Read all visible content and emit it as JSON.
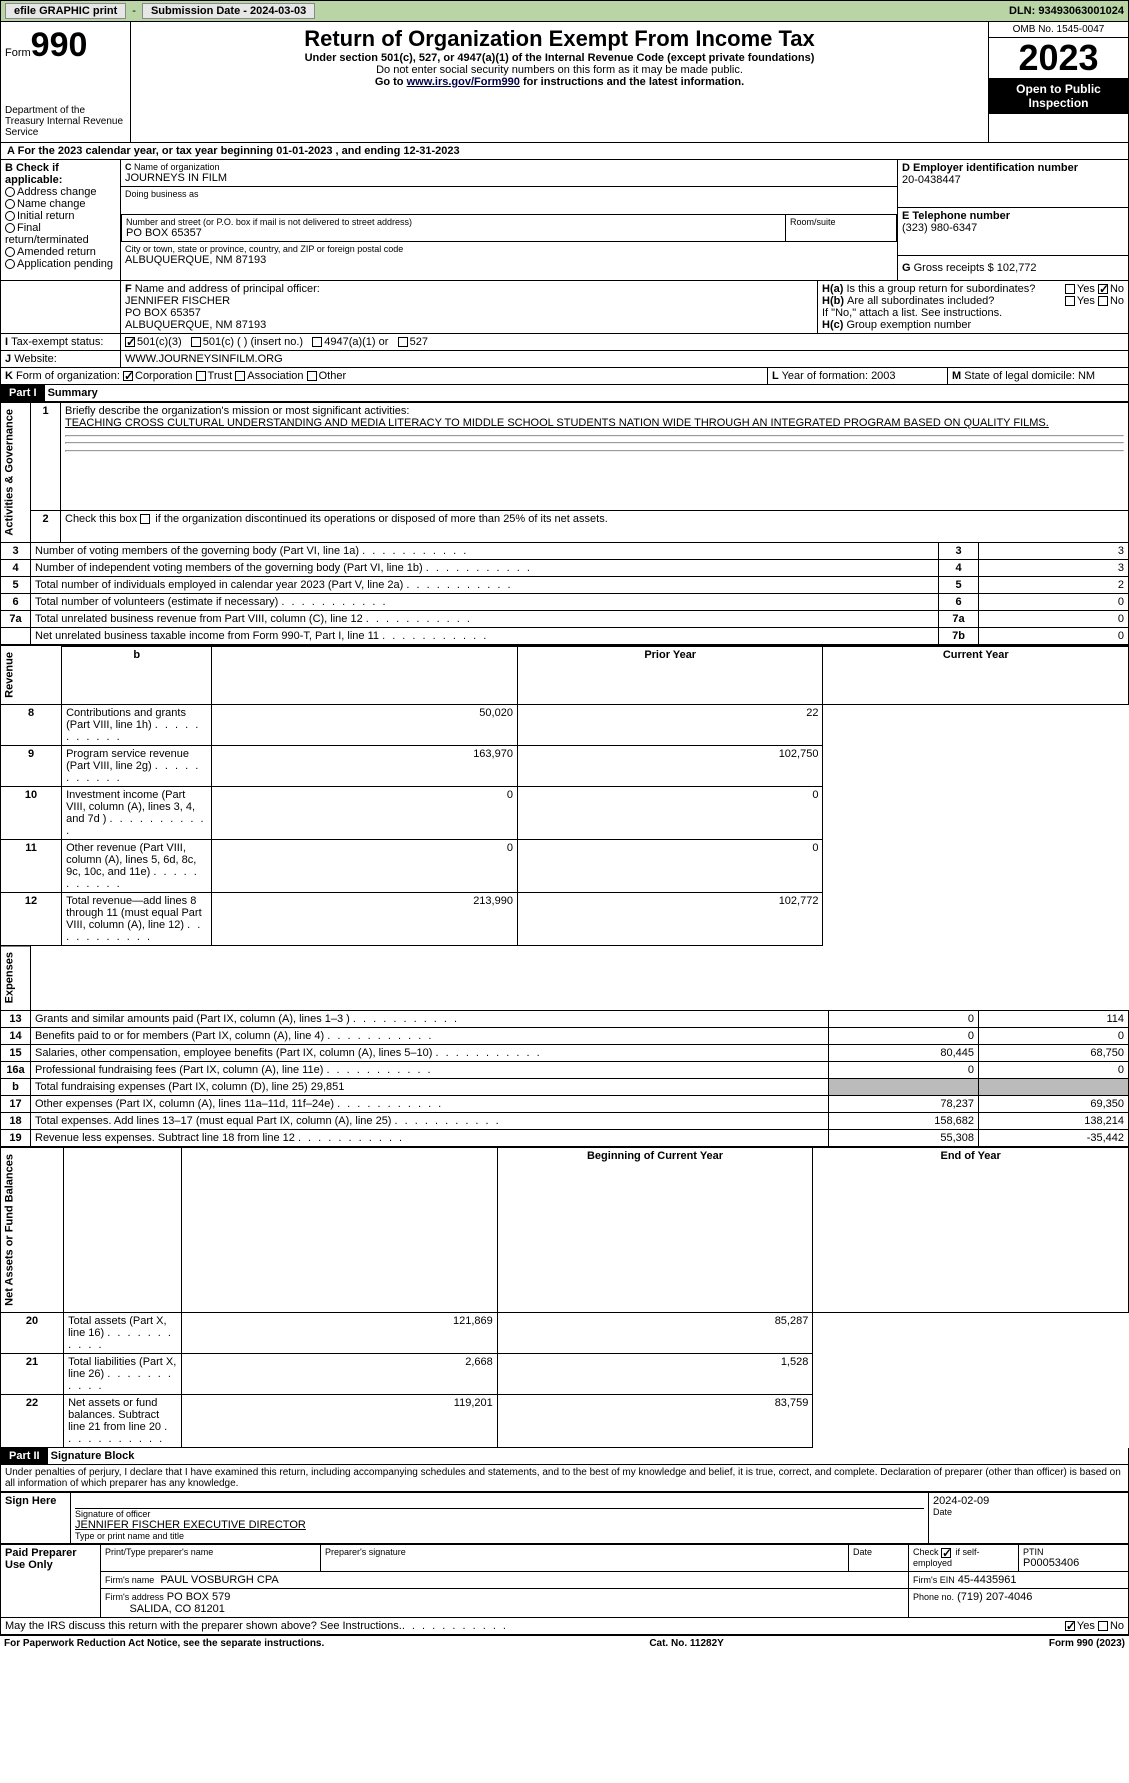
{
  "topbar": {
    "efile_label": "efile GRAPHIC print",
    "dash": "-",
    "sub_label": "Submission Date - 2024-03-03",
    "dln": "DLN: 93493063001024"
  },
  "header": {
    "form_word": "Form",
    "form_num": "990",
    "dept": "Department of the Treasury Internal Revenue Service",
    "title": "Return of Organization Exempt From Income Tax",
    "sub1": "Under section 501(c), 527, or 4947(a)(1) of the Internal Revenue Code (except private foundations)",
    "sub2": "Do not enter social security numbers on this form as it may be made public.",
    "goto_pre": "Go to ",
    "goto_link": "www.irs.gov/Form990",
    "goto_post": " for instructions and the latest information.",
    "omb": "OMB No. 1545-0047",
    "year": "2023",
    "open": "Open to Public Inspection"
  },
  "A": {
    "text": "For the 2023 calendar year, or tax year beginning 01-01-2023    , and ending 12-31-2023"
  },
  "B": {
    "title": "Check if applicable:",
    "items": [
      "Address change",
      "Name change",
      "Initial return",
      "Final return/terminated",
      "Amended return",
      "Application pending"
    ]
  },
  "C": {
    "name_label": "Name of organization",
    "name": "JOURNEYS IN FILM",
    "dba_label": "Doing business as",
    "addr_label": "Number and street (or P.O. box if mail is not delivered to street address)",
    "room_label": "Room/suite",
    "addr": "PO BOX 65357",
    "city_label": "City or town, state or province, country, and ZIP or foreign postal code",
    "city": "ALBUQUERQUE, NM  87193"
  },
  "D": {
    "label": "Employer identification number",
    "val": "20-0438447"
  },
  "E": {
    "label": "Telephone number",
    "val": "(323) 980-6347"
  },
  "G": {
    "label": "Gross receipts $",
    "val": "102,772"
  },
  "F": {
    "label": "Name and address of principal officer:",
    "lines": [
      "JENNIFER FISCHER",
      "PO BOX 65357",
      "ALBUQUERQUE, NM  87193"
    ]
  },
  "H": {
    "a": "Is this a group return for subordinates?",
    "b": "Are all subordinates included?",
    "note": "If \"No,\" attach a list. See instructions.",
    "c": "Group exemption number",
    "yes": "Yes",
    "no": "No",
    "Ha_yes": false,
    "Ha_no": true
  },
  "I": {
    "label": "Tax-exempt status:",
    "c3": "501(c)(3)",
    "c": "501(c) (  ) (insert no.)",
    "a1": "4947(a)(1) or",
    "s527": "527"
  },
  "J": {
    "label": "Website:",
    "val": "WWW.JOURNEYSINFILM.ORG"
  },
  "K": {
    "label": "Form of organization:",
    "corp": "Corporation",
    "trust": "Trust",
    "assoc": "Association",
    "other": "Other"
  },
  "L": {
    "label": "Year of formation:",
    "val": "2003"
  },
  "M": {
    "label": "State of legal domicile:",
    "val": "NM"
  },
  "part1": {
    "label": "Part I",
    "title": "Summary",
    "q1": "Briefly describe the organization's mission or most significant activities:",
    "mission": "TEACHING CROSS CULTURAL UNDERSTANDING AND MEDIA LITERACY TO MIDDLE SCHOOL STUDENTS NATION WIDE THROUGH AN INTEGRATED PROGRAM BASED ON QUALITY FILMS.",
    "q2": "Check this box        if the organization discontinued its operations or disposed of more than 25% of its net assets.",
    "gov_label": "Activities & Governance",
    "rev_label": "Revenue",
    "exp_label": "Expenses",
    "net_label": "Net Assets or Fund Balances",
    "prior": "Prior Year",
    "current": "Current Year",
    "boy": "Beginning of Current Year",
    "eoy": "End of Year",
    "lines_gov": [
      {
        "n": "3",
        "t": "Number of voting members of the governing body (Part VI, line 1a)",
        "k": "3",
        "v": "3"
      },
      {
        "n": "4",
        "t": "Number of independent voting members of the governing body (Part VI, line 1b)",
        "k": "4",
        "v": "3"
      },
      {
        "n": "5",
        "t": "Total number of individuals employed in calendar year 2023 (Part V, line 2a)",
        "k": "5",
        "v": "2"
      },
      {
        "n": "6",
        "t": "Total number of volunteers (estimate if necessary)",
        "k": "6",
        "v": "0"
      },
      {
        "n": "7a",
        "t": "Total unrelated business revenue from Part VIII, column (C), line 12",
        "k": "7a",
        "v": "0"
      },
      {
        "n": "",
        "t": "Net unrelated business taxable income from Form 990-T, Part I, line 11",
        "k": "7b",
        "v": "0"
      }
    ],
    "lines_rev": [
      {
        "n": "8",
        "t": "Contributions and grants (Part VIII, line 1h)",
        "py": "50,020",
        "cy": "22"
      },
      {
        "n": "9",
        "t": "Program service revenue (Part VIII, line 2g)",
        "py": "163,970",
        "cy": "102,750"
      },
      {
        "n": "10",
        "t": "Investment income (Part VIII, column (A), lines 3, 4, and 7d )",
        "py": "0",
        "cy": "0"
      },
      {
        "n": "11",
        "t": "Other revenue (Part VIII, column (A), lines 5, 6d, 8c, 9c, 10c, and 11e)",
        "py": "0",
        "cy": "0"
      },
      {
        "n": "12",
        "t": "Total revenue—add lines 8 through 11 (must equal Part VIII, column (A), line 12)",
        "py": "213,990",
        "cy": "102,772"
      }
    ],
    "lines_exp": [
      {
        "n": "13",
        "t": "Grants and similar amounts paid (Part IX, column (A), lines 1–3 )",
        "py": "0",
        "cy": "114"
      },
      {
        "n": "14",
        "t": "Benefits paid to or for members (Part IX, column (A), line 4)",
        "py": "0",
        "cy": "0"
      },
      {
        "n": "15",
        "t": "Salaries, other compensation, employee benefits (Part IX, column (A), lines 5–10)",
        "py": "80,445",
        "cy": "68,750"
      },
      {
        "n": "16a",
        "t": "Professional fundraising fees (Part IX, column (A), line 11e)",
        "py": "0",
        "cy": "0"
      },
      {
        "n": "b",
        "t": "Total fundraising expenses (Part IX, column (D), line 25) 29,851",
        "py": "",
        "cy": "",
        "gray": true
      },
      {
        "n": "17",
        "t": "Other expenses (Part IX, column (A), lines 11a–11d, 11f–24e)",
        "py": "78,237",
        "cy": "69,350"
      },
      {
        "n": "18",
        "t": "Total expenses. Add lines 13–17 (must equal Part IX, column (A), line 25)",
        "py": "158,682",
        "cy": "138,214"
      },
      {
        "n": "19",
        "t": "Revenue less expenses. Subtract line 18 from line 12",
        "py": "55,308",
        "cy": "-35,442"
      }
    ],
    "lines_net": [
      {
        "n": "20",
        "t": "Total assets (Part X, line 16)",
        "py": "121,869",
        "cy": "85,287"
      },
      {
        "n": "21",
        "t": "Total liabilities (Part X, line 26)",
        "py": "2,668",
        "cy": "1,528"
      },
      {
        "n": "22",
        "t": "Net assets or fund balances. Subtract line 21 from line 20",
        "py": "119,201",
        "cy": "83,759"
      }
    ]
  },
  "part2": {
    "label": "Part II",
    "title": "Signature Block",
    "declaration": "Under penalties of perjury, I declare that I have examined this return, including accompanying schedules and statements, and to the best of my knowledge and belief, it is true, correct, and complete. Declaration of preparer (other than officer) is based on all information of which preparer has any knowledge.",
    "sign_here": "Sign Here",
    "sig_officer_label": "Signature of officer",
    "date_label": "Date",
    "date_val": "2024-02-09",
    "officer_name": "JENNIFER FISCHER  EXECUTIVE DIRECTOR",
    "type_name_label": "Type or print name and title",
    "paid": "Paid Preparer Use Only",
    "pt_name_label": "Print/Type preparer's name",
    "prep_sig_label": "Preparer's signature",
    "chk_label": "Check          if self-employed",
    "ptin_label": "PTIN",
    "ptin": "P00053406",
    "firm_name_label": "Firm's name",
    "firm_name": "PAUL VOSBURGH CPA",
    "firm_ein_label": "Firm's EIN",
    "firm_ein": "45-4435961",
    "firm_addr_label": "Firm's address",
    "firm_addr1": "PO BOX 579",
    "firm_addr2": "SALIDA, CO  81201",
    "phone_label": "Phone no.",
    "phone": "(719) 207-4046",
    "discuss": "May the IRS discuss this return with the preparer shown above? See Instructions."
  },
  "footer": {
    "left": "For Paperwork Reduction Act Notice, see the separate instructions.",
    "mid": "Cat. No. 11282Y",
    "right": "Form 990 (2023)"
  },
  "colors": {
    "topbar_bg": "#b9d5a6",
    "gray": "#bbbbbb",
    "text": "#000000"
  }
}
